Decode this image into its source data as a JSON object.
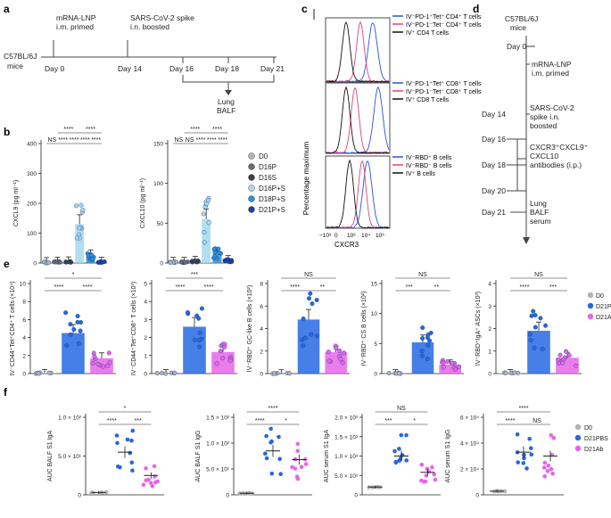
{
  "colors": {
    "d0": "#b3b3b3",
    "d16p": "#6b6b6b",
    "d16s": "#3f3f3f",
    "d16ps": "#a6d8ef",
    "d18ps": "#2f8fd6",
    "d21ps": "#1d3fa3",
    "pbs": "#2668e0",
    "ab": "#e566e8",
    "cd4_pd1pos": "#2d50d8",
    "cd4_pd1neg": "#e0407a",
    "cd4_ivpos": "#111111"
  },
  "panel_labels": {
    "a": "a",
    "b": "b",
    "c": "c",
    "d": "d",
    "e": "e",
    "f": "f"
  },
  "panel_a": {
    "mouse": [
      "C57BL/6J",
      "mice"
    ],
    "prime": [
      "mRNA-LNP",
      "i.m. primed"
    ],
    "boost": [
      "SARS-CoV-2 spike",
      "i.n. boosted"
    ],
    "days": [
      "Day 0",
      "Day 14",
      "Day 16",
      "Day 18",
      "Day 21"
    ],
    "harvest": [
      "Lung",
      "BALF"
    ]
  },
  "panel_b_legend": [
    "D0",
    "D16P",
    "D16S",
    "D16P+S",
    "D18P+S",
    "D21P+S"
  ],
  "chart_data": [
    {
      "id": "b1",
      "type": "bar",
      "ylabel": "CXCL9 (pg ml⁻¹)",
      "ylim": [
        0,
        400
      ],
      "ticks": [
        0,
        100,
        200,
        300,
        400
      ],
      "categories": [
        "D0",
        "D16P",
        "D16S",
        "D16P+S",
        "D18P+S",
        "D21P+S"
      ],
      "values": [
        2,
        3,
        4,
        130,
        25,
        3
      ],
      "sig": [
        [
          "NS",
          "****",
          "****",
          "****",
          "****"
        ],
        [
          "****",
          "****"
        ]
      ]
    },
    {
      "id": "b2",
      "type": "bar",
      "ylabel": "CXCL10 (pg ml⁻¹)",
      "ylim": [
        0,
        150
      ],
      "ticks": [
        0,
        50,
        100,
        150
      ],
      "categories": [
        "D0",
        "D16P",
        "D16S",
        "D16P+S",
        "D18P+S",
        "D21P+S"
      ],
      "values": [
        1,
        1,
        2,
        55,
        12,
        3
      ],
      "sig": [
        [
          "NS",
          "NS",
          "****",
          "****",
          "****"
        ],
        [
          "****",
          "****"
        ]
      ]
    },
    {
      "id": "e1",
      "type": "bar",
      "ylabel": "IV⁻CD44⁺Tet⁺CD4⁺ T cells (×10⁴)",
      "ylim": [
        0,
        10
      ],
      "ticks": [
        0,
        2,
        4,
        6,
        8,
        10
      ],
      "categories": [
        "D0",
        "D21PBS",
        "D21Ab"
      ],
      "values": [
        0.05,
        4.5,
        1.7
      ],
      "sig": [
        "****",
        "****",
        "*"
      ]
    },
    {
      "id": "e2",
      "type": "bar",
      "ylabel": "IV⁻CD44⁺Tet⁺CD8⁺ T cells (×10³)",
      "ylim": [
        0,
        5
      ],
      "ticks": [
        0,
        1,
        2,
        3,
        4,
        5
      ],
      "categories": [
        "D0",
        "D21PBS",
        "D21Ab"
      ],
      "values": [
        0.02,
        2.6,
        1.2
      ],
      "sig": [
        "****",
        "****",
        "***"
      ]
    },
    {
      "id": "e3",
      "type": "bar",
      "ylabel": "IV⁻RBD⁺ GC-like B cells (×10²)",
      "ylim": [
        0,
        8
      ],
      "ticks": [
        0,
        2,
        4,
        6,
        8
      ],
      "categories": [
        "D0",
        "D21PBS",
        "D21Ab"
      ],
      "values": [
        0.02,
        4.8,
        1.9
      ],
      "sig": [
        "****",
        "**",
        "NS"
      ]
    },
    {
      "id": "e4",
      "type": "bar",
      "ylabel": "IV⁻RBD⁺ CS B cells (×10²)",
      "ylim": [
        0,
        15
      ],
      "ticks": [
        0,
        5,
        10,
        15
      ],
      "categories": [
        "D0",
        "D21PBS",
        "D21Ab"
      ],
      "values": [
        0.05,
        5.2,
        1.5
      ],
      "sig": [
        "***",
        "**",
        "NS"
      ]
    },
    {
      "id": "e5",
      "type": "bar",
      "ylabel": "IV⁻RBD⁺IgA⁺ ASCs (×10³)",
      "ylim": [
        0,
        4
      ],
      "ticks": [
        0,
        1,
        2,
        3,
        4
      ],
      "categories": [
        "D0",
        "D21PBS",
        "D21Ab"
      ],
      "values": [
        0.02,
        1.9,
        0.7
      ],
      "sig": [
        "****",
        "***",
        "NS"
      ]
    },
    {
      "id": "f1",
      "type": "scatter",
      "ylabel": "AUC BALF S1 IgA",
      "ylim": [
        0,
        100
      ],
      "ticks": [
        0,
        50,
        100
      ],
      "categories": [
        "D0",
        "D21PBS",
        "D21Ab"
      ],
      "values": [
        3,
        55,
        25
      ],
      "sig": [
        "****",
        "***",
        "*"
      ]
    },
    {
      "id": "f2",
      "type": "scatter",
      "ylabel": "AUC BALF S1 IgG",
      "ylim": [
        0,
        150
      ],
      "ticks": [
        0,
        50,
        100,
        150
      ],
      "categories": [
        "D0",
        "D21PBS",
        "D21Ab"
      ],
      "values": [
        3,
        85,
        68
      ],
      "sig": [
        "****",
        "*",
        "****"
      ]
    },
    {
      "id": "f3",
      "type": "scatter",
      "ylabel": "AUC serum S1 IgA",
      "ylim": [
        0,
        2000
      ],
      "ticks": [
        0,
        500,
        1000,
        1500,
        2000
      ],
      "categories": [
        "D0",
        "D21PBS",
        "D21Ab"
      ],
      "values": [
        200,
        1000,
        580
      ],
      "sig": [
        "***",
        "*",
        "NS"
      ]
    },
    {
      "id": "f4",
      "type": "scatter",
      "ylabel": "AUC serum S1 IgG",
      "ylim": [
        0,
        60000
      ],
      "ticks": [
        0,
        20000,
        40000,
        60000
      ],
      "categories": [
        "D0",
        "D21PBS",
        "D21Ab"
      ],
      "values": [
        2800,
        33000,
        30000
      ],
      "sig": [
        "****",
        "NS",
        "****"
      ]
    }
  ],
  "tick_text": {
    "b1": [
      "0",
      "100",
      "200",
      "300",
      "400"
    ],
    "b2": [
      "0",
      "50",
      "100",
      "150"
    ],
    "e1": [
      "0",
      "2",
      "4",
      "6",
      "8",
      "10"
    ],
    "e2": [
      "0",
      "1",
      "2",
      "3",
      "4",
      "5"
    ],
    "e3": [
      "0",
      "2",
      "4",
      "6",
      "8"
    ],
    "e4": [
      "0",
      "5",
      "10",
      "15"
    ],
    "e5": [
      "0",
      "1",
      "2",
      "3",
      "4"
    ],
    "f1": [
      "0",
      "5.0 × 10¹",
      "1.0 × 10²"
    ],
    "f2": [
      "0",
      "5.0 × 10¹",
      "1.0 × 10²",
      "1.5 × 10²"
    ],
    "f3": [
      "0",
      "5.0 × 10²",
      "1.0 × 10³",
      "1.5 × 10³",
      "2.0 × 10³"
    ],
    "f4": [
      "0",
      "2 × 10⁴",
      "4 × 10⁴",
      "6 × 10⁴"
    ]
  },
  "panel_c": {
    "ylabel": "Percentage maximum",
    "xlabel": "CXCR3",
    "xticks": [
      "−10³",
      "0",
      "10³",
      "10⁴",
      "10⁵"
    ],
    "legends": [
      [
        "IV⁻PD-1⁺Tet⁺ CD4⁺ T cells",
        "IV⁻PD-1⁻Tet⁻ CD4⁺ T cells",
        "IV⁺ CD4 T cells"
      ],
      [
        "IV⁻PD-1⁺Tet⁺ CD8⁺ T cells",
        "IV⁻PD-1⁻Tet⁻ CD8⁺ T cells",
        "IV⁺ CD8 T cells"
      ],
      [
        "IV⁻RBD⁺ B cells",
        "IV⁻RBD⁻ B cells",
        "IV⁺ B cells"
      ]
    ]
  },
  "panel_d": {
    "mouse": [
      "C57BL/6J",
      "mice"
    ],
    "day0": "Day 0",
    "prime": [
      "mRNA-LNP",
      "i.m. primed"
    ],
    "day14": "Day 14",
    "boost": [
      "SARS-CoV-2",
      "spike i.n.",
      "boosted"
    ],
    "day16": "Day 16",
    "antibodies": [
      "CXCR3⁺CXCL9⁺",
      "CXCL10",
      "antibodies (i.p.)"
    ],
    "day18": "Day 18",
    "day20": "Day 20",
    "day21": "Day 21",
    "harvest": [
      "Lung",
      "BALF",
      "serum"
    ]
  },
  "legend_ef": [
    "D0",
    "D21PBS",
    "D21Ab"
  ]
}
